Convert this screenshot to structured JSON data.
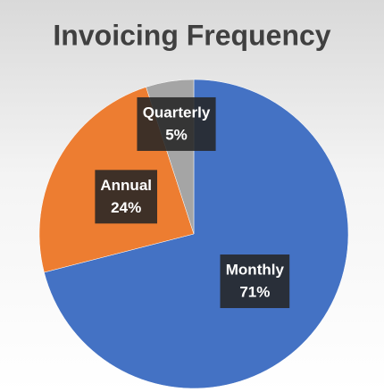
{
  "chart_data": {
    "type": "pie",
    "title": "Invoicing Frequency",
    "categories": [
      "Monthly",
      "Annual",
      "Quarterly"
    ],
    "values": [
      71,
      24,
      5
    ],
    "value_labels": [
      "71%",
      "24%",
      "5%"
    ],
    "colors": [
      "#4472c4",
      "#ed7d31",
      "#a5a5a5"
    ]
  }
}
